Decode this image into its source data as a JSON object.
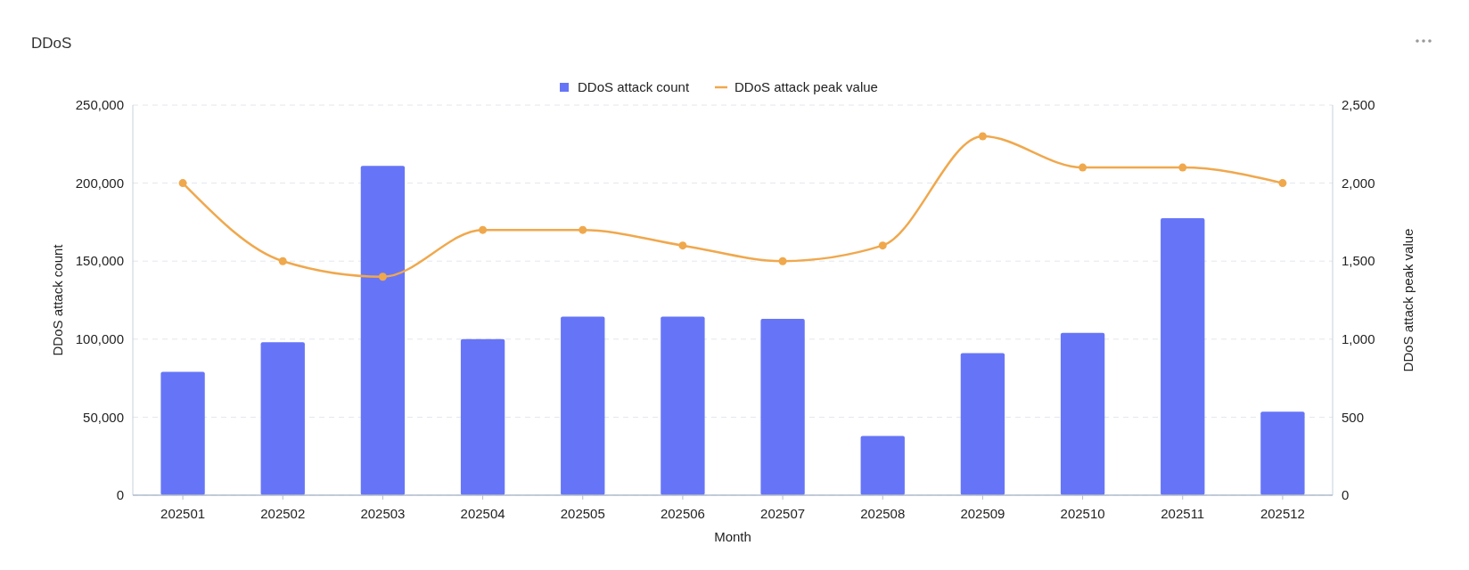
{
  "chart_data": {
    "type": "bar",
    "title": "DDoS",
    "xlabel": "Month",
    "ylabel": "DDoS attack count",
    "y2label": "DDoS attack peak value",
    "categories": [
      "202501",
      "202502",
      "202503",
      "202504",
      "202505",
      "202506",
      "202507",
      "202508",
      "202509",
      "202510",
      "202511",
      "202512"
    ],
    "series": [
      {
        "name": "DDoS attack count",
        "color": "#6675f7",
        "values": [
          79000,
          98000,
          211000,
          100000,
          114500,
          114500,
          113000,
          38000,
          91000,
          104000,
          177500,
          53500
        ]
      },
      {
        "name": "DDoS attack peak value",
        "type": "line",
        "axis": "y2",
        "color": "#f0a84d",
        "marker": "circle",
        "values": [
          2000,
          1500,
          1400,
          1700,
          1700,
          1600,
          1500,
          1600,
          2300,
          2100,
          2100,
          2000
        ]
      }
    ],
    "ylim": [
      0,
      250000
    ],
    "yticks": [
      {
        "value": 0,
        "label": "0"
      },
      {
        "value": 50000,
        "label": "50,000"
      },
      {
        "value": 100000,
        "label": "100,000"
      },
      {
        "value": 150000,
        "label": "150,000"
      },
      {
        "value": 200000,
        "label": "200,000"
      },
      {
        "value": 250000,
        "label": "250,000"
      }
    ],
    "y2lim": [
      0,
      2500
    ],
    "y2ticks": [
      {
        "value": 0,
        "label": "0"
      },
      {
        "value": 500,
        "label": "500"
      },
      {
        "value": 1000,
        "label": "1,000"
      },
      {
        "value": 1500,
        "label": "1,500"
      },
      {
        "value": 2000,
        "label": "2,000"
      },
      {
        "value": 2500,
        "label": "2,500"
      }
    ],
    "grid": "y",
    "legend": "top"
  }
}
